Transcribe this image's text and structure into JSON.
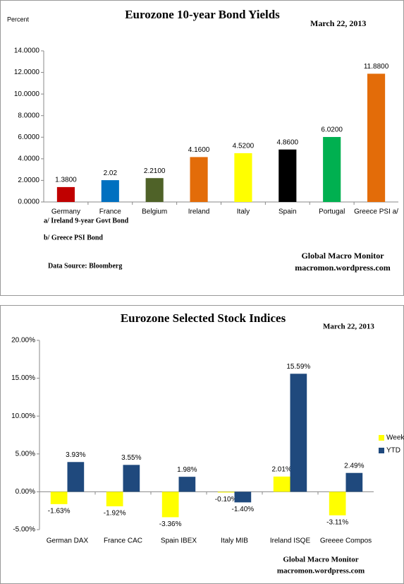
{
  "chart_data": [
    {
      "type": "bar",
      "title": "Eurozone 10-year Bond Yields",
      "y_label": "Percent",
      "date": "March 22, 2013",
      "categories": [
        "Germany",
        "France",
        "Belgium",
        "Ireland",
        "Italy",
        "Spain",
        "Portugal",
        "Greece PSI a/"
      ],
      "values": [
        1.38,
        2.02,
        2.21,
        4.16,
        4.52,
        4.86,
        6.02,
        11.88
      ],
      "value_labels": [
        "1.3800",
        "2.02",
        "2.2100",
        "4.1600",
        "4.5200",
        "4.8600",
        "6.0200",
        "11.8800"
      ],
      "colors": [
        "#c00000",
        "#0070c0",
        "#4f6228",
        "#e36c09",
        "#ffff00",
        "#000000",
        "#00b050",
        "#e36c09"
      ],
      "ylim": [
        0,
        14
      ],
      "yticks": [
        {
          "value": 0,
          "label": "0.0000"
        },
        {
          "value": 2,
          "label": "2.0000"
        },
        {
          "value": 4,
          "label": "4.0000"
        },
        {
          "value": 6,
          "label": "6.0000"
        },
        {
          "value": 8,
          "label": "8.0000"
        },
        {
          "value": 10,
          "label": "10.0000"
        },
        {
          "value": 12,
          "label": "12.0000"
        },
        {
          "value": 14,
          "label": "14.0000"
        }
      ],
      "grid": false,
      "notes": [
        "a/ Ireland 9-year Govt Bond",
        "b/  Greece PSI Bond"
      ],
      "source": "Data Source:  Bloomberg",
      "credit": [
        "Global Macro Monitor",
        "macromon.wordpress.com"
      ]
    },
    {
      "type": "bar",
      "title": "Eurozone Selected Stock Indices",
      "date": "March 22, 2013",
      "categories": [
        "German DAX",
        "France CAC",
        "Spain IBEX",
        "Italy MIB",
        "Ireland ISQE",
        "Greeee Compos"
      ],
      "series": [
        {
          "name": "Week",
          "color": "#ffff00",
          "values": [
            -1.63,
            -1.92,
            -3.36,
            -0.1,
            2.01,
            -3.11
          ],
          "value_labels": [
            "-1.63%",
            "-1.92%",
            "-3.36%",
            "-0.10%",
            "2.01%",
            "-3.11%"
          ]
        },
        {
          "name": "YTD",
          "color": "#1f497d",
          "values": [
            3.93,
            3.55,
            1.98,
            -1.4,
            15.59,
            2.49
          ],
          "value_labels": [
            "3.93%",
            "3.55%",
            "1.98%",
            "-1.40%",
            "15.59%",
            "2.49%"
          ]
        }
      ],
      "ylim": [
        -5,
        20
      ],
      "yticks": [
        {
          "value": -5,
          "label": "-5.00%"
        },
        {
          "value": 0,
          "label": "0.00%"
        },
        {
          "value": 5,
          "label": "5.00%"
        },
        {
          "value": 10,
          "label": "10.00%"
        },
        {
          "value": 15,
          "label": "15.00%"
        },
        {
          "value": 20,
          "label": "20.00%"
        }
      ],
      "grid": false,
      "legend": "right",
      "credit": [
        "Global Macro Monitor",
        "macromon.wordpress.com"
      ]
    }
  ]
}
